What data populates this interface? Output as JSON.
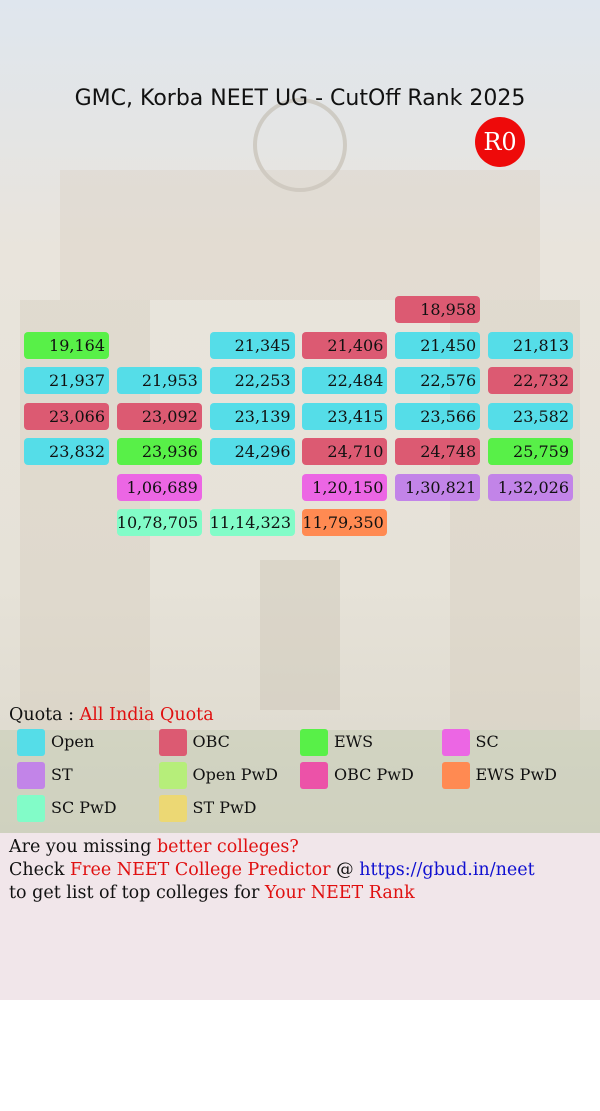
{
  "header": {
    "title": "GMC, Korba NEET UG - CutOff Rank 2025",
    "round": "R0"
  },
  "grid": {
    "rows": [
      [
        null,
        null,
        null,
        null,
        {
          "text": "18,958",
          "quota": "OBC"
        },
        null
      ],
      [
        {
          "text": "19,164",
          "quota": "EWS"
        },
        null,
        {
          "text": "21,345",
          "quota": "Open"
        },
        {
          "text": "21,406",
          "quota": "OBC"
        },
        {
          "text": "21,450",
          "quota": "Open"
        },
        {
          "text": "21,813",
          "quota": "Open"
        }
      ],
      [
        {
          "text": "21,937",
          "quota": "Open"
        },
        {
          "text": "21,953",
          "quota": "Open"
        },
        {
          "text": "22,253",
          "quota": "Open"
        },
        {
          "text": "22,484",
          "quota": "Open"
        },
        {
          "text": "22,576",
          "quota": "Open"
        },
        {
          "text": "22,732",
          "quota": "OBC"
        }
      ],
      [
        {
          "text": "23,066",
          "quota": "OBC"
        },
        {
          "text": "23,092",
          "quota": "OBC"
        },
        {
          "text": "23,139",
          "quota": "Open"
        },
        {
          "text": "23,415",
          "quota": "Open"
        },
        {
          "text": "23,566",
          "quota": "Open"
        },
        {
          "text": "23,582",
          "quota": "Open"
        }
      ],
      [
        {
          "text": "23,832",
          "quota": "Open"
        },
        {
          "text": "23,936",
          "quota": "EWS"
        },
        {
          "text": "24,296",
          "quota": "Open"
        },
        {
          "text": "24,710",
          "quota": "OBC"
        },
        {
          "text": "24,748",
          "quota": "OBC"
        },
        {
          "text": "25,759",
          "quota": "EWS"
        }
      ],
      [
        null,
        {
          "text": "1,06,689",
          "quota": "SC"
        },
        null,
        {
          "text": "1,20,150",
          "quota": "SC"
        },
        {
          "text": "1,30,821",
          "quota": "ST"
        },
        {
          "text": "1,32,026",
          "quota": "ST"
        }
      ],
      [
        null,
        {
          "text": "10,78,705",
          "quota": "SC PwD"
        },
        {
          "text": "11,14,323",
          "quota": "SC PwD"
        },
        {
          "text": "11,79,350",
          "quota": "EWS PwD"
        },
        null,
        null
      ]
    ]
  },
  "quota": {
    "label": "Quota :",
    "value": "All India Quota"
  },
  "legend": [
    {
      "label": "Open",
      "color": "#55dde8"
    },
    {
      "label": "OBC",
      "color": "#dc5a72"
    },
    {
      "label": "EWS",
      "color": "#58f048"
    },
    {
      "label": "SC",
      "color": "#ec66e4"
    },
    {
      "label": "ST",
      "color": "#c284e8"
    },
    {
      "label": "Open PwD",
      "color": "#b6ee7a"
    },
    {
      "label": "OBC PwD",
      "color": "#ec52a8"
    },
    {
      "label": "EWS PwD",
      "color": "#ff8a52"
    },
    {
      "label": "SC PwD",
      "color": "#82fcc8"
    },
    {
      "label": "ST PwD",
      "color": "#ecd874"
    }
  ],
  "footer": {
    "lines": [
      [
        {
          "text": "Are you missing"
        },
        {
          "text": "better colleges?",
          "color": "#e01010"
        }
      ],
      [
        {
          "text": "Check"
        },
        {
          "text": "Free NEET College Predictor",
          "color": "#e01010"
        },
        {
          "text": "@"
        },
        {
          "text": "https://gbud.in/neet",
          "color": "#1010d0"
        }
      ],
      [
        {
          "text": "to get list of top colleges for"
        },
        {
          "text": "Your NEET Rank",
          "color": "#e01010"
        }
      ]
    ]
  }
}
